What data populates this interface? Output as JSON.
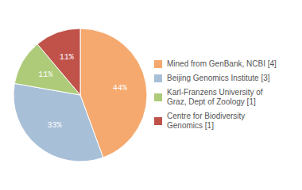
{
  "chart_data": {
    "type": "pie",
    "categories": [
      "Mined from GenBank, NCBI [4]",
      "Beijing Genomics Institute [3]",
      "Karl-Franzens University of\nGraz, Dept of Zoology [1]",
      "Centre for Biodiversity\nGenomics [1]"
    ],
    "values": [
      44,
      33,
      11,
      11
    ],
    "value_labels": [
      "44%",
      "33%",
      "11%",
      "11%"
    ],
    "colors": [
      "#f5a96e",
      "#a8bfd8",
      "#aecb7a",
      "#c0524a"
    ],
    "data_labels": true,
    "legend": "right"
  }
}
